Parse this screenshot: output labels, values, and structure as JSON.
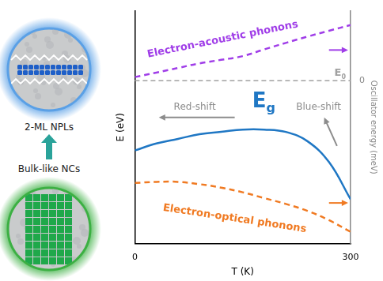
{
  "chart_data": {
    "type": "line",
    "x": [
      0,
      30,
      60,
      90,
      120,
      150,
      180,
      210,
      240,
      270,
      300
    ],
    "series": [
      {
        "name": "Electron-acoustic phonons",
        "color": "#a03ee8",
        "line_style": "dashed",
        "axis": "y2",
        "values": [
          1.6,
          3.5,
          5.5,
          7.5,
          9,
          10.6,
          13.5,
          16.3,
          19,
          21.5,
          24
        ]
      },
      {
        "name": "Eg",
        "color": "#1f77c4",
        "line_style": "solid",
        "values": [
          4.0,
          4.3,
          4.5,
          4.7,
          4.8,
          4.9,
          4.9,
          4.8,
          4.4,
          3.5,
          1.9
        ]
      },
      {
        "name": "Electron-optical phonons",
        "color": "#f07a22",
        "line_style": "dashed",
        "axis": "y2",
        "values": [
          -44,
          -43.5,
          -43.5,
          -44.5,
          -46,
          -48,
          -50.5,
          -53,
          -56,
          -60,
          -65
        ]
      }
    ],
    "x_label": "T (K)",
    "y_label": "E (eV)",
    "y2_label": "Oscillator energy (meV)",
    "xlim": [
      0,
      300
    ],
    "xticks": [
      0,
      300
    ],
    "ylim": [
      0,
      10
    ],
    "yticks": [],
    "y2lim": [
      -70,
      30
    ],
    "y2ticks": [
      0
    ],
    "grid": false,
    "annotations": [
      {
        "text": "E0",
        "y2": 0,
        "color": "#a0a0a0"
      },
      {
        "text": "Red-shift",
        "color": "#8c8c8c"
      },
      {
        "text": "Blue-shift",
        "color": "#8c8c8c"
      }
    ],
    "insets": [
      {
        "label": "2-ML NPLs",
        "color": "#5aa0e6"
      },
      {
        "label": "Bulk-like NCs",
        "color": "#3cb043"
      }
    ]
  }
}
